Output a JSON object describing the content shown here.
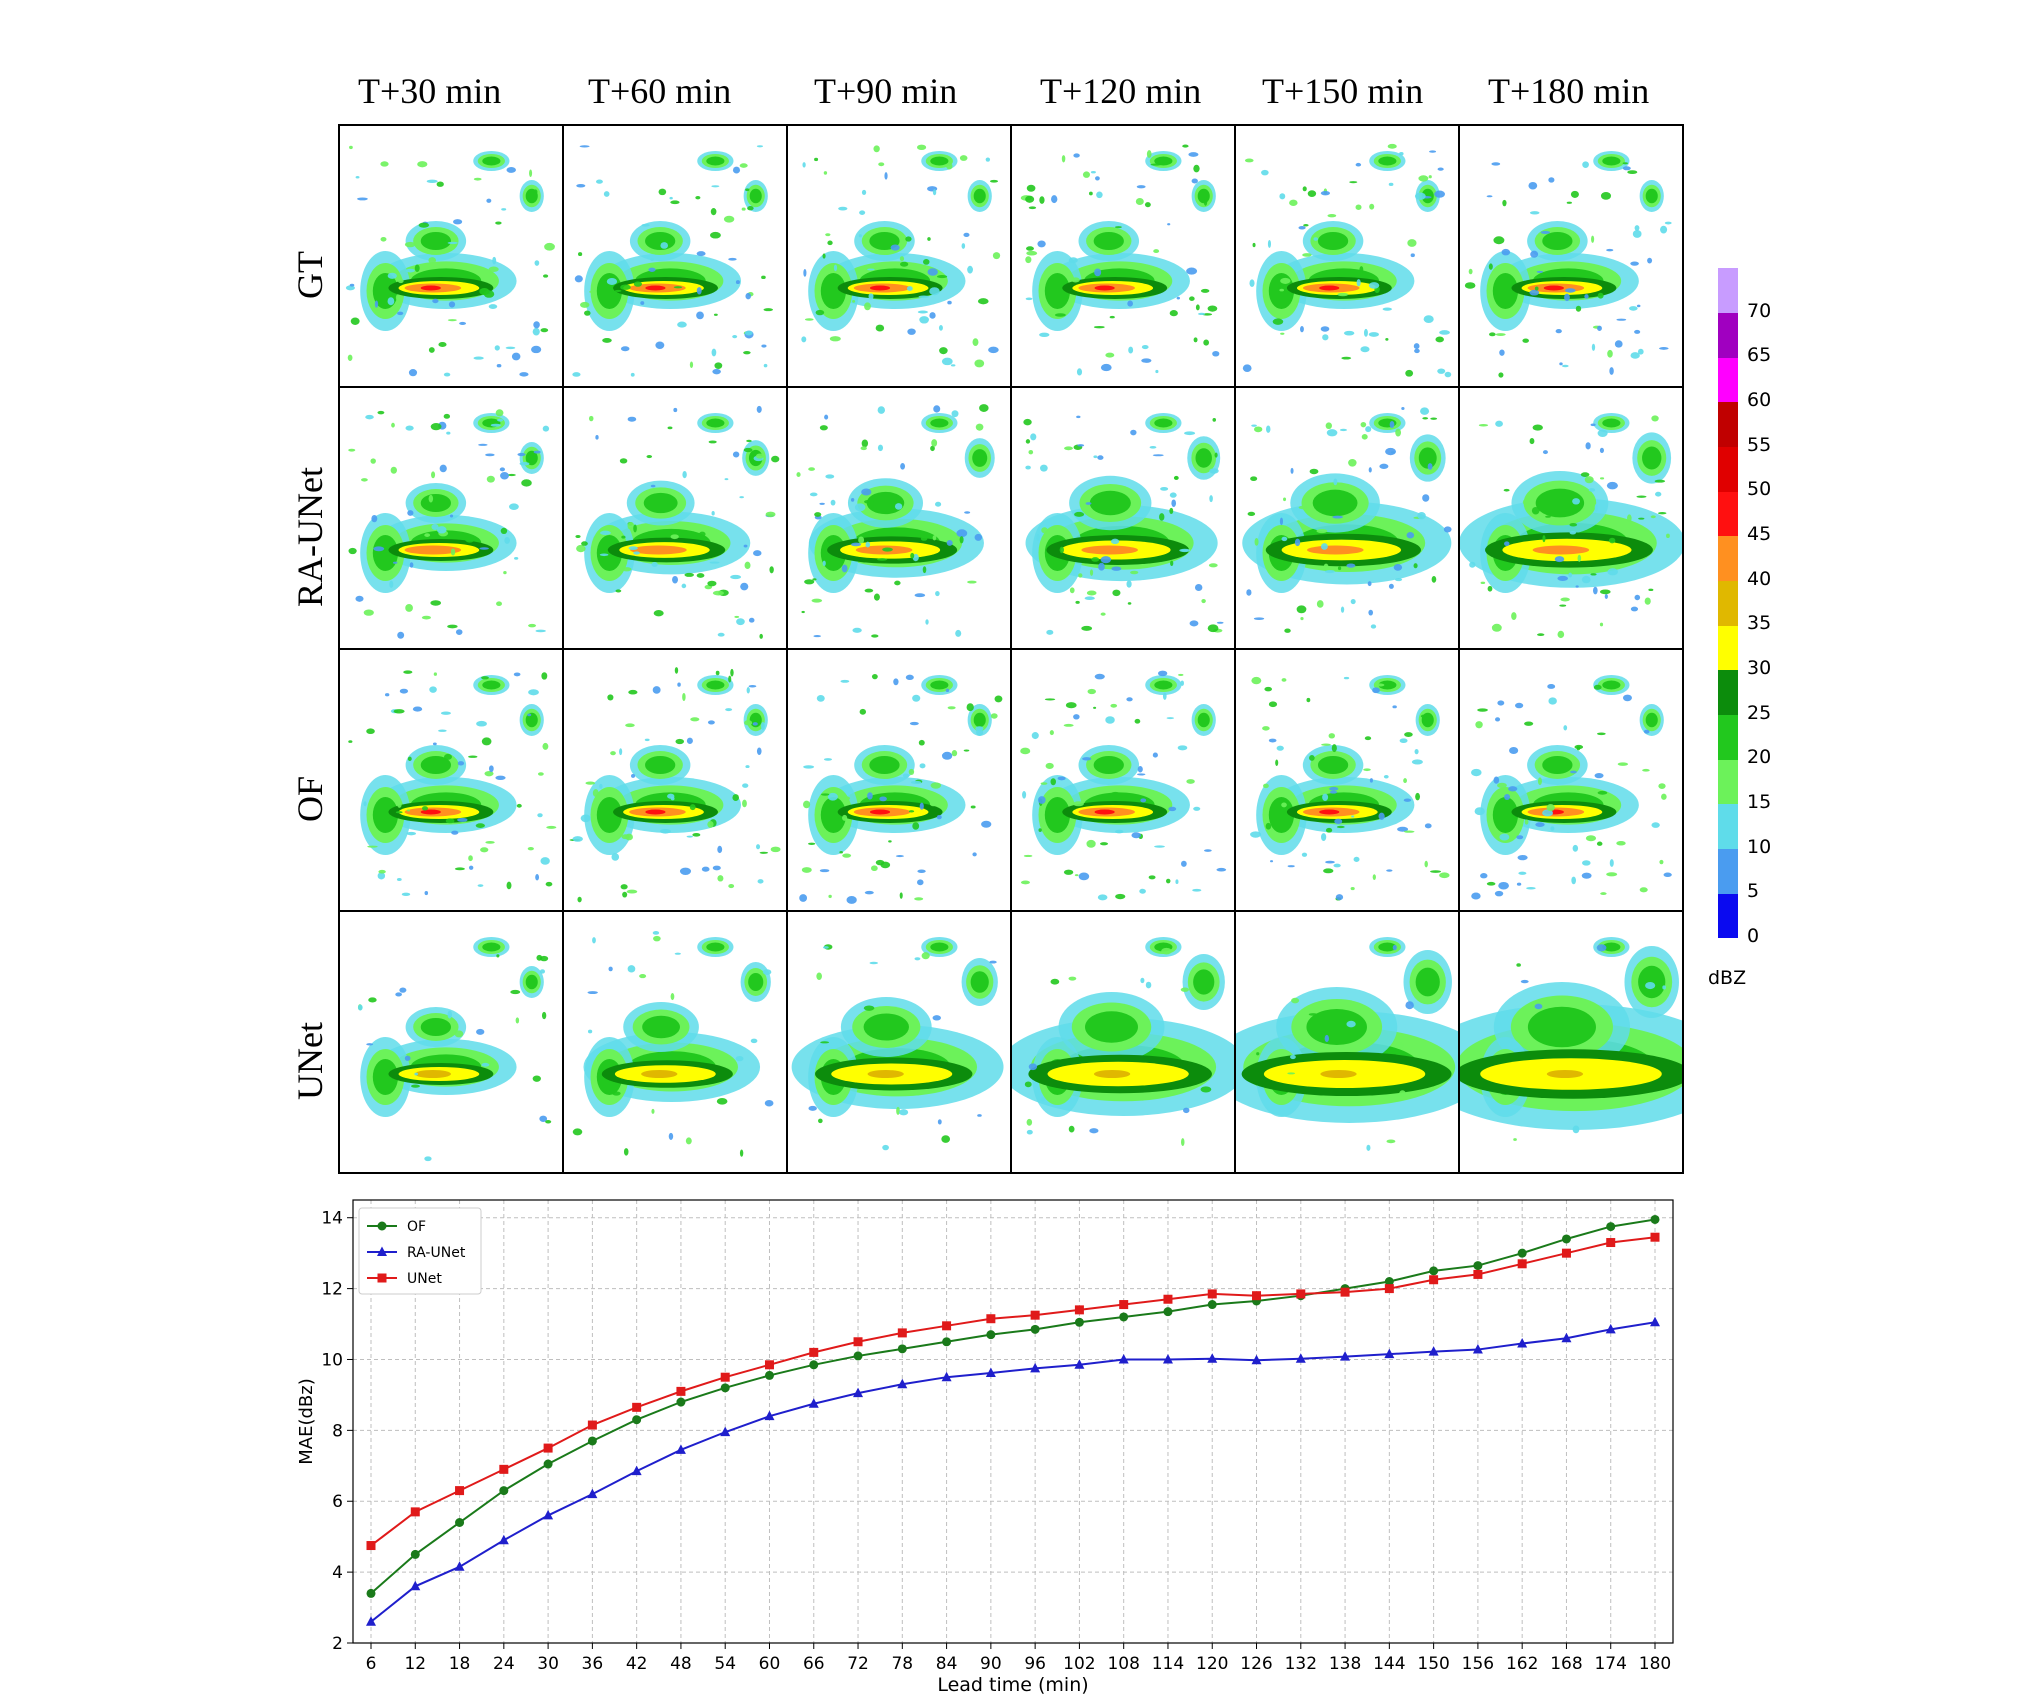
{
  "columns": [
    "T+30 min",
    "T+60 min",
    "T+90 min",
    "T+120 min",
    "T+150 min",
    "T+180 min"
  ],
  "rows": [
    "GT",
    "RA-UNet",
    "OF",
    "UNet"
  ],
  "colorbar": {
    "unit": "dBZ",
    "ticks": [
      "0",
      "5",
      "10",
      "15",
      "20",
      "25",
      "30",
      "35",
      "40",
      "45",
      "50",
      "55",
      "60",
      "65",
      "70"
    ],
    "colors": [
      "#0a0af0",
      "#4a9cf0",
      "#5fdcea",
      "#6cf25a",
      "#22c81e",
      "#0c8c0c",
      "#ffff00",
      "#e0b800",
      "#ff9020",
      "#ff1010",
      "#e00000",
      "#c00000",
      "#ff00ff",
      "#a000c0",
      "#c89cff"
    ]
  },
  "chart_data": {
    "type": "line",
    "xlabel": "Lead time (min)",
    "ylabel": "MAE(dBz)",
    "x": [
      6,
      12,
      18,
      24,
      30,
      36,
      42,
      48,
      54,
      60,
      66,
      72,
      78,
      84,
      90,
      96,
      102,
      108,
      114,
      120,
      126,
      132,
      138,
      144,
      150,
      156,
      162,
      168,
      174,
      180
    ],
    "ylim": [
      2,
      14.5
    ],
    "yticks": [
      2,
      4,
      6,
      8,
      10,
      12,
      14
    ],
    "grid": true,
    "legend_position": "top-left",
    "series": [
      {
        "name": "OF",
        "color": "#1a7a1a",
        "marker": "circle",
        "values": [
          3.4,
          4.5,
          5.4,
          6.3,
          7.05,
          7.7,
          8.3,
          8.8,
          9.2,
          9.55,
          9.85,
          10.1,
          10.3,
          10.5,
          10.7,
          10.85,
          11.05,
          11.2,
          11.35,
          11.55,
          11.65,
          11.8,
          12.0,
          12.2,
          12.5,
          12.65,
          13.0,
          13.4,
          13.75,
          13.95
        ]
      },
      {
        "name": "RA-UNet",
        "color": "#1f1fcc",
        "marker": "triangle",
        "values": [
          2.6,
          3.6,
          4.15,
          4.9,
          5.6,
          6.2,
          6.85,
          7.45,
          7.95,
          8.4,
          8.75,
          9.05,
          9.3,
          9.5,
          9.62,
          9.75,
          9.85,
          10.0,
          10.0,
          10.02,
          9.98,
          10.02,
          10.08,
          10.15,
          10.22,
          10.28,
          10.45,
          10.6,
          10.85,
          11.05
        ]
      },
      {
        "name": "UNet",
        "color": "#e01a1a",
        "marker": "square",
        "values": [
          4.75,
          5.7,
          6.3,
          6.9,
          7.5,
          8.15,
          8.65,
          9.1,
          9.5,
          9.85,
          10.2,
          10.5,
          10.75,
          10.95,
          11.15,
          11.25,
          11.4,
          11.55,
          11.7,
          11.85,
          11.8,
          11.85,
          11.9,
          12.0,
          12.25,
          12.4,
          12.7,
          13.0,
          13.3,
          13.45
        ]
      }
    ]
  }
}
